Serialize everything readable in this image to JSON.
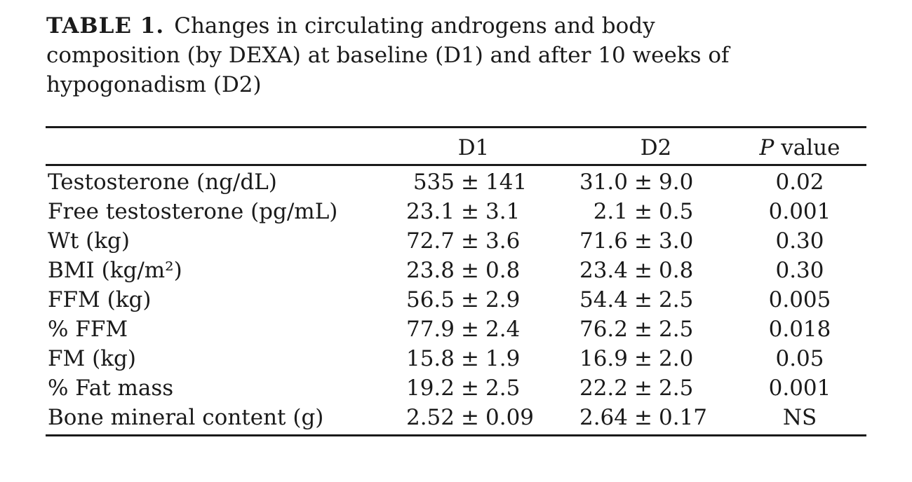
{
  "page": {
    "background": "#ffffff",
    "text_color": "#1a1a1a"
  },
  "caption": {
    "label": "TABLE 1.",
    "lines": [
      "Changes in circulating androgens and body",
      "composition (by DEXA) at baseline (D1) and after 10 weeks of",
      "hypogonadism (D2)"
    ]
  },
  "table": {
    "headers": {
      "label_col": "",
      "d1": "D1",
      "d2": "D2",
      "p_italic": "P",
      "p_rest": " value"
    },
    "pm_symbol": "±",
    "rows": [
      {
        "label": "Testosterone (ng/dL)",
        "d1_mean": "535",
        "d1_sd": "141",
        "d2_mean": "31.0",
        "d2_sd": "9.0",
        "p": "0.02"
      },
      {
        "label": "Free testosterone (pg/mL)",
        "d1_mean": "23.1",
        "d1_sd": "3.1",
        "d2_mean": "2.1",
        "d2_sd": "0.5",
        "p": "0.001"
      },
      {
        "label": "Wt (kg)",
        "d1_mean": "72.7",
        "d1_sd": "3.6",
        "d2_mean": "71.6",
        "d2_sd": "3.0",
        "p": "0.30"
      },
      {
        "label": "BMI (kg/m²)",
        "d1_mean": "23.8",
        "d1_sd": "0.8",
        "d2_mean": "23.4",
        "d2_sd": "0.8",
        "p": "0.30"
      },
      {
        "label": "FFM (kg)",
        "d1_mean": "56.5",
        "d1_sd": "2.9",
        "d2_mean": "54.4",
        "d2_sd": "2.5",
        "p": "0.005"
      },
      {
        "label": "% FFM",
        "d1_mean": "77.9",
        "d1_sd": "2.4",
        "d2_mean": "76.2",
        "d2_sd": "2.5",
        "p": "0.018"
      },
      {
        "label": "FM (kg)",
        "d1_mean": "15.8",
        "d1_sd": "1.9",
        "d2_mean": "16.9",
        "d2_sd": "2.0",
        "p": "0.05"
      },
      {
        "label": "% Fat mass",
        "d1_mean": "19.2",
        "d1_sd": "2.5",
        "d2_mean": "22.2",
        "d2_sd": "2.5",
        "p": "0.001"
      },
      {
        "label": "Bone mineral content (g)",
        "d1_mean": "2.52",
        "d1_sd": "0.09",
        "d2_mean": "2.64",
        "d2_sd": "0.17",
        "p": "NS"
      }
    ]
  },
  "chart_data": {
    "type": "table",
    "title": "TABLE 1. Changes in circulating androgens and body composition (by DEXA) at baseline (D1) and after 10 weeks of hypogonadism (D2)",
    "columns": [
      "",
      "D1",
      "D2",
      "P value"
    ],
    "rows": [
      [
        "Testosterone (ng/dL)",
        "535 ± 141",
        "31.0 ± 9.0",
        "0.02"
      ],
      [
        "Free testosterone (pg/mL)",
        "23.1 ± 3.1",
        "2.1 ± 0.5",
        "0.001"
      ],
      [
        "Wt (kg)",
        "72.7 ± 3.6",
        "71.6 ± 3.0",
        "0.30"
      ],
      [
        "BMI (kg/m²)",
        "23.8 ± 0.8",
        "23.4 ± 0.8",
        "0.30"
      ],
      [
        "FFM (kg)",
        "56.5 ± 2.9",
        "54.4 ± 2.5",
        "0.005"
      ],
      [
        "% FFM",
        "77.9 ± 2.4",
        "76.2 ± 2.5",
        "0.018"
      ],
      [
        "FM (kg)",
        "15.8 ± 1.9",
        "16.9 ± 2.0",
        "0.05"
      ],
      [
        "% Fat mass",
        "19.2 ± 2.5",
        "22.2 ± 2.5",
        "0.001"
      ],
      [
        "Bone mineral content (g)",
        "2.52 ± 0.09",
        "2.64 ± 0.17",
        "NS"
      ]
    ]
  }
}
